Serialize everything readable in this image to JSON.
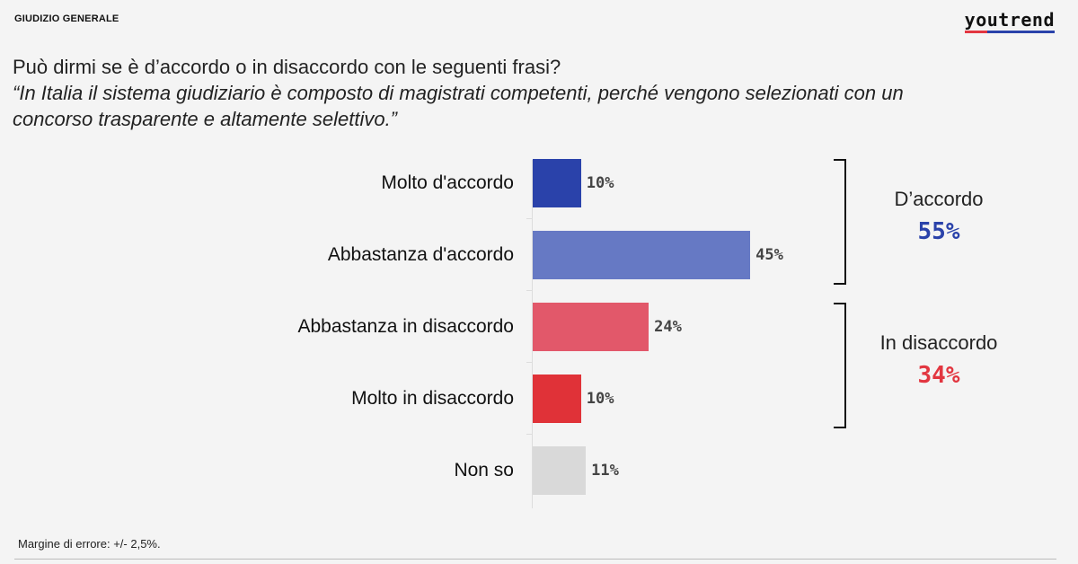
{
  "header": {
    "section": "GIUDIZIO GENERALE",
    "logo": "youtrend"
  },
  "question": "Può dirmi se è d’accordo o in disaccordo con le seguenti frasi?",
  "quote": "“In Italia il sistema giudiziario è composto di magistrati competenti, perché vengono selezionati con un concorso trasparente e altamente selettivo.”",
  "chart_data": {
    "type": "bar",
    "orientation": "horizontal",
    "categories": [
      "Molto d'accordo",
      "Abbastanza d'accordo",
      "Abbastanza in disaccordo",
      "Molto in disaccordo",
      "Non so"
    ],
    "values": [
      10,
      45,
      24,
      10,
      11
    ],
    "value_labels": [
      "10%",
      "45%",
      "24%",
      "10%",
      "11%"
    ],
    "colors": [
      "#2a42aa",
      "#6679c4",
      "#e2586a",
      "#e03238",
      "#d9d9d9"
    ],
    "groups": [
      {
        "label": "D’accordo",
        "value": "55%",
        "color": "#2a42aa"
      },
      {
        "label": "In disaccordo",
        "value": "34%",
        "color": "#e23640"
      }
    ]
  },
  "footer": {
    "note": "Margine di errore: +/- 2,5%."
  }
}
